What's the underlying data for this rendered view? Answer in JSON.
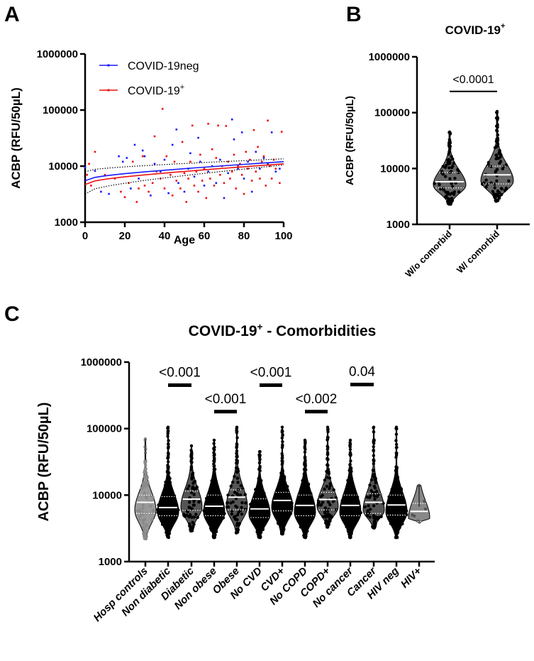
{
  "panel_labels": {
    "a": "A",
    "b": "B",
    "c": "C"
  },
  "chart_data": [
    {
      "id": "A",
      "type": "scatter",
      "xlabel": "Age",
      "ylabel": "ACBP (RFU/50µL)",
      "xlim": [
        0,
        100
      ],
      "ylim": [
        1000,
        1000000
      ],
      "yscale": "log",
      "xticks": [
        "0",
        "20",
        "40",
        "60",
        "80",
        "100"
      ],
      "yticks": [
        "1000",
        "10000",
        "100000",
        "1000000"
      ],
      "legend_position": "top-left",
      "series": [
        {
          "name": "COVID-19neg",
          "color": "#1a1aff",
          "trend": [
            [
              0,
              5500
            ],
            [
              100,
              12000
            ]
          ],
          "ci_upper": [
            [
              0,
              8000
            ],
            [
              100,
              13500
            ]
          ],
          "ci_lower": [
            [
              0,
              3200
            ],
            [
              100,
              10500
            ]
          ],
          "points": [
            [
              0,
              9500
            ],
            [
              5,
              8200
            ],
            [
              8,
              3500
            ],
            [
              12,
              3200
            ],
            [
              17,
              15000
            ],
            [
              19,
              12000
            ],
            [
              21,
              14000
            ],
            [
              23,
              4000
            ],
            [
              25,
              24000
            ],
            [
              27,
              6000
            ],
            [
              29,
              19000
            ],
            [
              30,
              15000
            ],
            [
              33,
              3000
            ],
            [
              35,
              11000
            ],
            [
              38,
              8000
            ],
            [
              40,
              13000
            ],
            [
              42,
              3300
            ],
            [
              44,
              24000
            ],
            [
              46,
              45000
            ],
            [
              47,
              5000
            ],
            [
              50,
              3500
            ],
            [
              52,
              9000
            ],
            [
              53,
              17000
            ],
            [
              55,
              6500
            ],
            [
              57,
              32000
            ],
            [
              58,
              12000
            ],
            [
              60,
              4500
            ],
            [
              62,
              8000
            ],
            [
              64,
              10000
            ],
            [
              66,
              5000
            ],
            [
              68,
              13000
            ],
            [
              70,
              2700
            ],
            [
              72,
              7500
            ],
            [
              74,
              68000
            ],
            [
              75,
              30000
            ],
            [
              77,
              9000
            ],
            [
              79,
              40000
            ],
            [
              80,
              6000
            ],
            [
              82,
              12000
            ],
            [
              84,
              3500
            ],
            [
              86,
              18000
            ],
            [
              88,
              9000
            ],
            [
              90,
              14000
            ],
            [
              92,
              11000
            ],
            [
              94,
              40000
            ],
            [
              96,
              8000
            ],
            [
              98,
              9000
            ]
          ]
        },
        {
          "name": "COVID-19",
          "name_superscript": "+",
          "color": "#ee1111",
          "trend": [
            [
              0,
              4700
            ],
            [
              100,
              11000
            ]
          ],
          "points": [
            [
              1,
              7000
            ],
            [
              2,
              11000
            ],
            [
              3,
              4500
            ],
            [
              5,
              18000
            ],
            [
              10,
              7000
            ],
            [
              15,
              6000
            ],
            [
              18,
              3500
            ],
            [
              20,
              2800
            ],
            [
              22,
              5000
            ],
            [
              24,
              12000
            ],
            [
              26,
              2300
            ],
            [
              27,
              4000
            ],
            [
              29,
              15000
            ],
            [
              30,
              4500
            ],
            [
              32,
              3500
            ],
            [
              34,
              5000
            ],
            [
              35,
              34000
            ],
            [
              36,
              8000
            ],
            [
              38,
              6000
            ],
            [
              39,
              105000
            ],
            [
              40,
              4000
            ],
            [
              41,
              15000
            ],
            [
              43,
              7000
            ],
            [
              44,
              3000
            ],
            [
              45,
              12000
            ],
            [
              46,
              5500
            ],
            [
              48,
              4000
            ],
            [
              49,
              27000
            ],
            [
              50,
              7500
            ],
            [
              51,
              2300
            ],
            [
              52,
              6000
            ],
            [
              53,
              12000
            ],
            [
              54,
              53000
            ],
            [
              55,
              4500
            ],
            [
              56,
              8000
            ],
            [
              57,
              3500
            ],
            [
              58,
              16000
            ],
            [
              59,
              5500
            ],
            [
              60,
              9000
            ],
            [
              61,
              2700
            ],
            [
              62,
              57000
            ],
            [
              63,
              6000
            ],
            [
              64,
              20000
            ],
            [
              65,
              4500
            ],
            [
              66,
              14000
            ],
            [
              67,
              53000
            ],
            [
              68,
              7000
            ],
            [
              69,
              10000
            ],
            [
              70,
              5000
            ],
            [
              71,
              52000
            ],
            [
              72,
              12000
            ],
            [
              73,
              6000
            ],
            [
              74,
              8000
            ],
            [
              75,
              16000
            ],
            [
              76,
              4000
            ],
            [
              77,
              10000
            ],
            [
              78,
              11000
            ],
            [
              79,
              7000
            ],
            [
              80,
              3200
            ],
            [
              81,
              18000
            ],
            [
              82,
              9000
            ],
            [
              83,
              13000
            ],
            [
              84,
              5500
            ],
            [
              85,
              44000
            ],
            [
              86,
              8000
            ],
            [
              87,
              22000
            ],
            [
              88,
              6000
            ],
            [
              89,
              12000
            ],
            [
              90,
              15000
            ],
            [
              91,
              4500
            ],
            [
              92,
              65000
            ],
            [
              93,
              10000
            ],
            [
              94,
              6000
            ],
            [
              95,
              13000
            ],
            [
              96,
              9000
            ],
            [
              98,
              5000
            ],
            [
              99,
              41000
            ]
          ]
        }
      ]
    },
    {
      "id": "B",
      "type": "violin",
      "title": "COVID-19",
      "title_superscript": "+",
      "ylabel": "ACBP (RFU/50µL)",
      "ylim": [
        1000,
        1000000
      ],
      "yscale": "log",
      "yticks": [
        "1000",
        "10000",
        "100000",
        "1000000"
      ],
      "categories": [
        "W/o comorbid",
        "W/ comorbid"
      ],
      "violins": [
        {
          "min": 2300,
          "max": 45000,
          "q1": 4500,
          "median": 5800,
          "q3": 8500,
          "fill": "#666666"
        },
        {
          "min": 2600,
          "max": 105000,
          "q1": 5300,
          "median": 7700,
          "q3": 11000,
          "fill": "#666666"
        }
      ],
      "comparisons": [
        {
          "from": 0,
          "to": 1,
          "y": 240000,
          "label": "<0.0001"
        }
      ]
    },
    {
      "id": "C",
      "type": "violin",
      "title": "COVID-19",
      "title_superscript": "+",
      "title_suffix": " - Comorbidities",
      "ylabel": "ACBP (RFU/50µL)",
      "ylim": [
        1000,
        1000000
      ],
      "yscale": "log",
      "yticks": [
        "1000",
        "10000",
        "100000",
        "1000000"
      ],
      "categories": [
        "Hosp controls",
        "Non diabetic",
        "Diabetic",
        "Non obese",
        "Obese",
        "No CVD",
        "CVD+",
        "No COPD",
        "COPD+",
        "No cancer",
        "Cancer",
        "HIV neg",
        "HIV+"
      ],
      "violins": [
        {
          "min": 2200,
          "max": 70000,
          "q1": 5300,
          "median": 7800,
          "q3": 10000,
          "fill": "#999999"
        },
        {
          "min": 2300,
          "max": 105000,
          "q1": 4900,
          "median": 6500,
          "q3": 9500,
          "fill": "#000000"
        },
        {
          "min": 2900,
          "max": 55000,
          "q1": 5900,
          "median": 8700,
          "q3": 11500,
          "fill": "#555555"
        },
        {
          "min": 2300,
          "max": 67000,
          "q1": 4900,
          "median": 6800,
          "q3": 10000,
          "fill": "#000000"
        },
        {
          "min": 2700,
          "max": 105000,
          "q1": 6000,
          "median": 9300,
          "q3": 12000,
          "fill": "#555555"
        },
        {
          "min": 2300,
          "max": 45000,
          "q1": 4600,
          "median": 6200,
          "q3": 8800,
          "fill": "#000000"
        },
        {
          "min": 2600,
          "max": 105000,
          "q1": 5800,
          "median": 8300,
          "q3": 11000,
          "fill": "#000000"
        },
        {
          "min": 2300,
          "max": 67000,
          "q1": 4900,
          "median": 7000,
          "q3": 10000,
          "fill": "#000000"
        },
        {
          "min": 3300,
          "max": 105000,
          "q1": 6000,
          "median": 8600,
          "q3": 11000,
          "fill": "#555555"
        },
        {
          "min": 2300,
          "max": 67000,
          "q1": 4900,
          "median": 7000,
          "q3": 10000,
          "fill": "#000000"
        },
        {
          "min": 3200,
          "max": 105000,
          "q1": 5300,
          "median": 7800,
          "q3": 10500,
          "fill": "#555555"
        },
        {
          "min": 2300,
          "max": 105000,
          "q1": 5000,
          "median": 7100,
          "q3": 10000,
          "fill": "#000000"
        },
        {
          "min": 3900,
          "max": 14000,
          "q1": 4000,
          "median": 5700,
          "q3": 7500,
          "fill": "#888888"
        }
      ],
      "comparisons": [
        {
          "from": 1,
          "to": 2,
          "y": 450000,
          "label": "<0.001"
        },
        {
          "from": 3,
          "to": 4,
          "y": 180000,
          "label": "<0.001"
        },
        {
          "from": 5,
          "to": 6,
          "y": 450000,
          "label": "<0.001"
        },
        {
          "from": 7,
          "to": 8,
          "y": 180000,
          "label": "<0.002"
        },
        {
          "from": 9,
          "to": 10,
          "y": 460000,
          "label": "0.04"
        }
      ]
    }
  ]
}
